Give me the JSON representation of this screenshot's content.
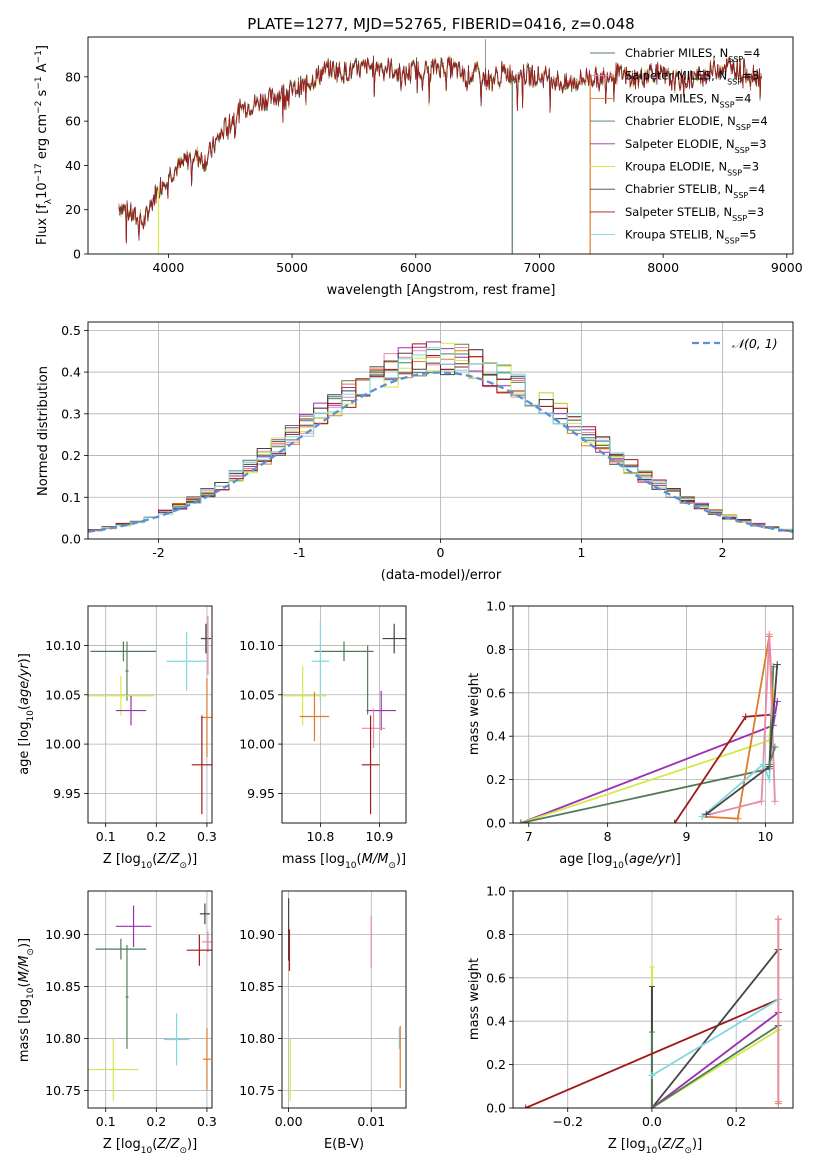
{
  "title": "PLATE=1277, MJD=52765, FIBERID=0416, z=0.048",
  "models": [
    {
      "name": "Chabrier MILES",
      "nssp": "4",
      "color": "#5a7d5a"
    },
    {
      "name": "Salpeter MILES",
      "nssp": "3",
      "color": "#e88aa8"
    },
    {
      "name": "Kroupa MILES",
      "nssp": "4",
      "color": "#e07b2c"
    },
    {
      "name": "Chabrier ELODIE",
      "nssp": "4",
      "color": "#4f7a5a"
    },
    {
      "name": "Salpeter ELODIE",
      "nssp": "3",
      "color": "#9b30b0"
    },
    {
      "name": "Kroupa ELODIE",
      "nssp": "3",
      "color": "#d4e84a"
    },
    {
      "name": "Chabrier STELIB",
      "nssp": "4",
      "color": "#444444"
    },
    {
      "name": "Salpeter STELIB",
      "nssp": "3",
      "color": "#a01818"
    },
    {
      "name": "Kroupa STELIB",
      "nssp": "5",
      "color": "#7fd8e0"
    }
  ],
  "chart_data": [
    {
      "id": "spectrum",
      "type": "line",
      "xlabel": "wavelength [Angstrom, rest frame]",
      "ylabel_main": "Flux [f",
      "ylabel_sub": "λ",
      "ylabel_mid": "10",
      "ylabel_sup": "−17",
      "ylabel_rest": " erg cm",
      "ylabel_sup2": "−2",
      "ylabel_rest2": " s",
      "ylabel_sup3": "−1",
      "ylabel_rest3": " A",
      "ylabel_sup4": "−1",
      "ylabel_end": "]",
      "xlim": [
        3350,
        9050
      ],
      "ylim": [
        0,
        98
      ],
      "xticks": [
        4000,
        5000,
        6000,
        7000,
        8000,
        9000
      ],
      "yticks": [
        0,
        20,
        40,
        60,
        80
      ],
      "envelope": [
        [
          3600,
          22
        ],
        [
          3700,
          18
        ],
        [
          3800,
          14
        ],
        [
          3900,
          28
        ],
        [
          4000,
          36
        ],
        [
          4100,
          40
        ],
        [
          4200,
          45
        ],
        [
          4300,
          42
        ],
        [
          4400,
          52
        ],
        [
          4500,
          60
        ],
        [
          4600,
          66
        ],
        [
          4700,
          68
        ],
        [
          4800,
          70
        ],
        [
          4900,
          72
        ],
        [
          5000,
          74
        ],
        [
          5100,
          76
        ],
        [
          5200,
          80
        ],
        [
          5300,
          84
        ],
        [
          5400,
          82
        ],
        [
          5500,
          83
        ],
        [
          5600,
          84
        ],
        [
          5700,
          85
        ],
        [
          5800,
          84
        ],
        [
          5900,
          80
        ],
        [
          6000,
          84
        ],
        [
          6100,
          83
        ],
        [
          6200,
          85
        ],
        [
          6300,
          84
        ],
        [
          6400,
          80
        ],
        [
          6500,
          82
        ],
        [
          6600,
          78
        ],
        [
          6700,
          82
        ],
        [
          6800,
          81
        ],
        [
          6900,
          81
        ],
        [
          7000,
          80
        ],
        [
          7100,
          80
        ],
        [
          7200,
          76
        ],
        [
          7300,
          78
        ],
        [
          7400,
          80
        ],
        [
          7500,
          80
        ],
        [
          7600,
          82
        ],
        [
          7700,
          80
        ],
        [
          7800,
          79
        ],
        [
          7900,
          83
        ],
        [
          8000,
          80
        ],
        [
          8100,
          78
        ],
        [
          8200,
          79
        ],
        [
          8300,
          80
        ],
        [
          8400,
          83
        ],
        [
          8500,
          85
        ],
        [
          8600,
          84
        ],
        [
          8700,
          82
        ],
        [
          8800,
          80
        ]
      ],
      "dropouts": [
        {
          "x": 3920,
          "model": 5
        },
        {
          "x": 6780,
          "model": 3
        },
        {
          "x": 7410,
          "model": 2
        }
      ]
    },
    {
      "id": "residual-hist",
      "type": "step-histogram",
      "xlabel": "(data-model)/error",
      "ylabel": "Normed distribution",
      "xlim": [
        -2.5,
        2.5
      ],
      "ylim": [
        0,
        0.52
      ],
      "xticks": [
        -2,
        -1,
        0,
        1,
        2
      ],
      "ytick_labels": [
        "0.0",
        "0.1",
        "0.2",
        "0.3",
        "0.4",
        "0.5"
      ],
      "yticks": [
        0,
        0.1,
        0.2,
        0.3,
        0.4,
        0.5
      ],
      "bin_width": 0.1,
      "reference": {
        "label": "𝒩(0, 1)",
        "color": "#5b8fd6"
      }
    },
    {
      "id": "age-vs-Z",
      "type": "errorbar",
      "xlabel": "Z [log",
      "ylabel": "age  [log",
      "xlim": [
        0.065,
        0.31
      ],
      "ylim": [
        9.92,
        10.14
      ],
      "xticks": [
        0.1,
        0.2,
        0.3
      ],
      "xtick_labels": [
        "0.1",
        "0.2",
        "0.3"
      ],
      "yticks": [
        9.95,
        10.0,
        10.05,
        10.1
      ],
      "ytick_labels": [
        "9.95",
        "10.00",
        "10.05",
        "10.10"
      ],
      "points": [
        {
          "m": 3,
          "x": 0.135,
          "xe": 0.065,
          "y": 10.094,
          "ye": 0.01
        },
        {
          "m": 0,
          "x": 0.142,
          "xe": 0.003,
          "y": 10.074,
          "ye": 0.03
        },
        {
          "m": 5,
          "x": 0.13,
          "xe": 0.065,
          "y": 10.049,
          "ye": 0.02
        },
        {
          "m": 4,
          "x": 0.15,
          "xe": 0.03,
          "y": 10.034,
          "ye": 0.015
        },
        {
          "m": 8,
          "x": 0.26,
          "xe": 0.04,
          "y": 10.084,
          "ye": 0.03
        },
        {
          "m": 6,
          "x": 0.298,
          "xe": 0.01,
          "y": 10.107,
          "ye": 0.015
        },
        {
          "m": 2,
          "x": 0.3,
          "xe": 0.012,
          "y": 10.027,
          "ye": 0.04
        },
        {
          "m": 7,
          "x": 0.29,
          "xe": 0.02,
          "y": 9.979,
          "ye": 0.05
        },
        {
          "m": 1,
          "x": 0.302,
          "xe": 0.0,
          "y": 10.1,
          "ye": 0.03
        }
      ]
    },
    {
      "id": "age-vs-mass",
      "type": "errorbar",
      "xlabel": "mass [log",
      "ylabel": "",
      "xlim": [
        10.735,
        10.945
      ],
      "ylim": [
        9.92,
        10.14
      ],
      "xticks": [
        10.8,
        10.9
      ],
      "xtick_labels": [
        "10.8",
        "10.9"
      ],
      "yticks": [
        9.95,
        10.0,
        10.05,
        10.1
      ],
      "ytick_labels": [
        "9.95",
        "10.00",
        "10.05",
        "10.10"
      ],
      "points": [
        {
          "m": 3,
          "x": 10.84,
          "xe": 0.05,
          "y": 10.094,
          "ye": 0.01
        },
        {
          "m": 8,
          "x": 10.8,
          "xe": 0.015,
          "y": 10.084,
          "ye": 0.04
        },
        {
          "m": 5,
          "x": 10.77,
          "xe": 0.04,
          "y": 10.049,
          "ye": 0.03
        },
        {
          "m": 2,
          "x": 10.79,
          "xe": 0.025,
          "y": 10.028,
          "ye": 0.025
        },
        {
          "m": 0,
          "x": 10.88,
          "xe": 0.0,
          "y": 10.065,
          "ye": 0.035
        },
        {
          "m": 4,
          "x": 10.903,
          "xe": 0.025,
          "y": 10.034,
          "ye": 0.02
        },
        {
          "m": 1,
          "x": 10.89,
          "xe": 0.02,
          "y": 10.016,
          "ye": 0.02
        },
        {
          "m": 6,
          "x": 10.925,
          "xe": 0.02,
          "y": 10.107,
          "ye": 0.015
        },
        {
          "m": 7,
          "x": 10.885,
          "xe": 0.015,
          "y": 9.979,
          "ye": 0.05
        }
      ]
    },
    {
      "id": "weight-vs-age",
      "type": "line",
      "xlabel": "age  [log",
      "ylabel": "mass weight",
      "xlim": [
        6.8,
        10.35
      ],
      "ylim": [
        0,
        1
      ],
      "xticks": [
        7,
        8,
        9,
        10
      ],
      "xtick_labels": [
        "7",
        "8",
        "9",
        "10"
      ],
      "yticks": [
        0,
        0.2,
        0.4,
        0.6,
        0.8,
        1.0
      ],
      "ytick_labels": [
        "0.0",
        "0.2",
        "0.4",
        "0.6",
        "0.8",
        "1.0"
      ],
      "series": [
        {
          "m": 4,
          "pts": [
            [
              6.9,
              0.0
            ],
            [
              10.1,
              0.45
            ],
            [
              10.15,
              0.56
            ]
          ]
        },
        {
          "m": 5,
          "pts": [
            [
              6.9,
              0.0
            ],
            [
              10.05,
              0.38
            ],
            [
              10.1,
              0.6
            ]
          ]
        },
        {
          "m": 3,
          "pts": [
            [
              6.9,
              0.0
            ],
            [
              10.05,
              0.25
            ],
            [
              10.1,
              0.72
            ]
          ]
        },
        {
          "m": 7,
          "pts": [
            [
              8.85,
              0.0
            ],
            [
              9.75,
              0.49
            ],
            [
              10.1,
              0.5
            ]
          ]
        },
        {
          "m": 2,
          "pts": [
            [
              9.2,
              0.03
            ],
            [
              9.65,
              0.02
            ],
            [
              10.05,
              0.86
            ],
            [
              10.1,
              0.5
            ]
          ]
        },
        {
          "m": 1,
          "pts": [
            [
              9.3,
              0.04
            ],
            [
              9.95,
              0.1
            ],
            [
              10.05,
              0.87
            ],
            [
              10.12,
              0.1
            ]
          ]
        },
        {
          "m": 8,
          "pts": [
            [
              9.2,
              0.03
            ],
            [
              9.97,
              0.27
            ],
            [
              10.05,
              0.2
            ],
            [
              10.1,
              0.5
            ]
          ]
        },
        {
          "m": 6,
          "pts": [
            [
              9.25,
              0.04
            ],
            [
              10.05,
              0.26
            ],
            [
              10.15,
              0.73
            ]
          ]
        },
        {
          "m": 0,
          "pts": [
            [
              10.05,
              0.27
            ],
            [
              10.12,
              0.35
            ]
          ]
        }
      ]
    },
    {
      "id": "mass-vs-Z",
      "type": "errorbar",
      "xlabel": "Z [log",
      "ylabel": "mass [log",
      "xlim": [
        0.065,
        0.31
      ],
      "ylim": [
        10.733,
        10.942
      ],
      "xticks": [
        0.1,
        0.2,
        0.3
      ],
      "xtick_labels": [
        "0.1",
        "0.2",
        "0.3"
      ],
      "yticks": [
        10.75,
        10.8,
        10.85,
        10.9
      ],
      "ytick_labels": [
        "10.75",
        "10.80",
        "10.85",
        "10.90"
      ],
      "points": [
        {
          "m": 4,
          "x": 0.155,
          "xe": 0.035,
          "y": 10.908,
          "ye": 0.02
        },
        {
          "m": 3,
          "x": 0.13,
          "xe": 0.05,
          "y": 10.886,
          "ye": 0.01
        },
        {
          "m": 0,
          "x": 0.142,
          "xe": 0.003,
          "y": 10.84,
          "ye": 0.05
        },
        {
          "m": 5,
          "x": 0.115,
          "xe": 0.05,
          "y": 10.77,
          "ye": 0.03
        },
        {
          "m": 8,
          "x": 0.24,
          "xe": 0.025,
          "y": 10.799,
          "ye": 0.025
        },
        {
          "m": 6,
          "x": 0.296,
          "xe": 0.01,
          "y": 10.92,
          "ye": 0.01
        },
        {
          "m": 1,
          "x": 0.302,
          "xe": 0.012,
          "y": 10.893,
          "ye": 0.01
        },
        {
          "m": 7,
          "x": 0.285,
          "xe": 0.025,
          "y": 10.885,
          "ye": 0.015
        },
        {
          "m": 2,
          "x": 0.3,
          "xe": 0.008,
          "y": 10.78,
          "ye": 0.03
        }
      ]
    },
    {
      "id": "mass-vs-EBV",
      "type": "errorbar",
      "xlabel": "E(B-V)",
      "ylabel": "",
      "xlim": [
        -0.0008,
        0.0142
      ],
      "ylim": [
        10.733,
        10.942
      ],
      "xticks": [
        0.0,
        0.01
      ],
      "xtick_labels": [
        "0.00",
        "0.01"
      ],
      "yticks": [
        10.75,
        10.8,
        10.85,
        10.9
      ],
      "ytick_labels": [
        "10.75",
        "10.80",
        "10.85",
        "10.90"
      ],
      "points": [
        {
          "m": 6,
          "x": 0.0,
          "xe": 0.0,
          "y": 10.905,
          "ye": 0.03
        },
        {
          "m": 7,
          "x": 0.0001,
          "xe": 0.0,
          "y": 10.885,
          "ye": 0.02
        },
        {
          "m": 5,
          "x": 0.0002,
          "xe": 0.0,
          "y": 10.77,
          "ye": 0.03
        },
        {
          "m": 1,
          "x": 0.01,
          "xe": 0.0,
          "y": 10.893,
          "ye": 0.025
        },
        {
          "m": 8,
          "x": 0.0134,
          "xe": 0.0,
          "y": 10.8,
          "ye": 0.01
        },
        {
          "m": 2,
          "x": 0.0135,
          "xe": 0.0,
          "y": 10.782,
          "ye": 0.03
        }
      ]
    },
    {
      "id": "weight-vs-Z",
      "type": "line",
      "xlabel": "Z [log",
      "ylabel": "mass weight",
      "xlim": [
        -0.33,
        0.335
      ],
      "ylim": [
        0,
        1
      ],
      "xticks": [
        -0.2,
        0.0,
        0.2
      ],
      "xtick_labels": [
        "−0.2",
        "0.0",
        "0.2"
      ],
      "yticks": [
        0,
        0.2,
        0.4,
        0.6,
        0.8,
        1.0
      ],
      "ytick_labels": [
        "0.0",
        "0.2",
        "0.4",
        "0.6",
        "0.8",
        "1.0"
      ],
      "series": [
        {
          "m": 7,
          "pts": [
            [
              -0.3,
              0.0
            ],
            [
              0.3,
              0.5
            ]
          ]
        },
        {
          "m": 6,
          "pts": [
            [
              0.0,
              0.0
            ],
            [
              0.3,
              0.73
            ]
          ]
        },
        {
          "m": 8,
          "pts": [
            [
              0.0,
              0.15
            ],
            [
              0.3,
              0.5
            ]
          ]
        },
        {
          "m": 4,
          "pts": [
            [
              0.0,
              0.0
            ],
            [
              0.3,
              0.44
            ]
          ]
        },
        {
          "m": 5,
          "pts": [
            [
              0.0,
              0.0
            ],
            [
              0.3,
              0.36
            ]
          ]
        },
        {
          "m": 3,
          "pts": [
            [
              0.0,
              0.0
            ],
            [
              0.3,
              0.38
            ]
          ]
        },
        {
          "m": 2,
          "pts": [
            [
              0.3,
              0.02
            ],
            [
              0.3,
              0.87
            ]
          ]
        },
        {
          "m": 1,
          "pts": [
            [
              0.3,
              0.03
            ],
            [
              0.3,
              0.87
            ]
          ]
        }
      ],
      "verticals": [
        {
          "m": 5,
          "x": 0.0,
          "y0": 0.0,
          "y1": 0.65
        },
        {
          "m": 6,
          "x": 0.0,
          "y0": 0.0,
          "y1": 0.56
        },
        {
          "m": 3,
          "x": 0.0,
          "y0": 0.0,
          "y1": 0.35
        }
      ]
    }
  ]
}
